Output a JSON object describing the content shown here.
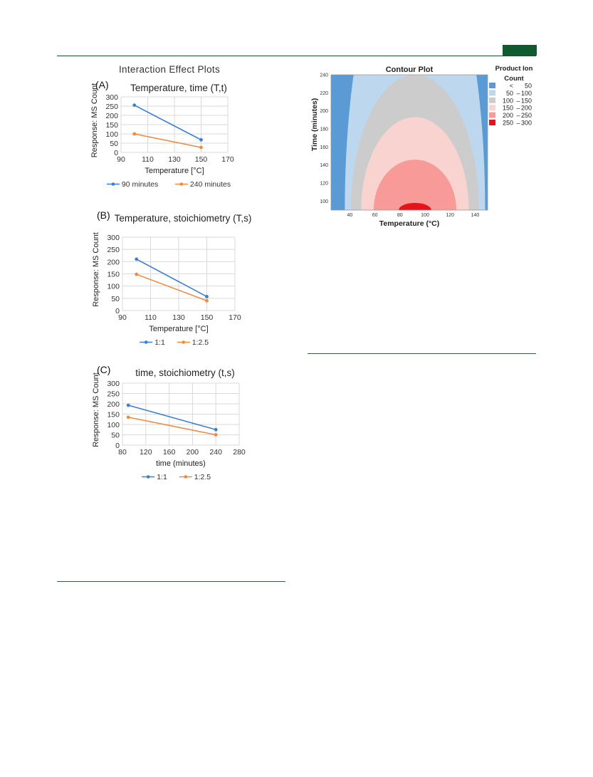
{
  "page": {
    "header_rule_color": "#1e4d2b",
    "header_tab_color": "#0f5a2e"
  },
  "left_figure": {
    "title": "Interaction Effect Plots"
  },
  "chart_data": [
    {
      "id": "A",
      "type": "line",
      "panel_label": "(A)",
      "title": "Temperature, time (T,t)",
      "xlabel": "Temperature [°C]",
      "ylabel": "Response: MS Count",
      "xlim": [
        90,
        170
      ],
      "ylim": [
        0,
        300
      ],
      "xticks": [
        90,
        110,
        130,
        150,
        170
      ],
      "yticks": [
        0,
        50,
        100,
        150,
        200,
        250,
        300
      ],
      "grid": true,
      "legend_position": "bottom",
      "x": [
        100,
        150
      ],
      "series": [
        {
          "name": "90 minutes",
          "values": [
            255,
            68
          ],
          "color": "#3a7fd0"
        },
        {
          "name": "240 minutes",
          "values": [
            100,
            27
          ],
          "color": "#f08a3e"
        }
      ]
    },
    {
      "id": "B",
      "type": "line",
      "panel_label": "(B)",
      "title": "Temperature, stoichiometry (T,s)",
      "xlabel": "Temperature [°C]",
      "ylabel": "Response: MS Count",
      "xlim": [
        90,
        170
      ],
      "ylim": [
        0,
        300
      ],
      "xticks": [
        90,
        110,
        130,
        150,
        170
      ],
      "yticks": [
        0,
        50,
        100,
        150,
        200,
        250,
        300
      ],
      "grid": true,
      "legend_position": "bottom",
      "x": [
        100,
        150
      ],
      "series": [
        {
          "name": "1:1",
          "values": [
            210,
            57
          ],
          "color": "#3a7fd0"
        },
        {
          "name": "1:2.5",
          "values": [
            148,
            40
          ],
          "color": "#f08a3e"
        }
      ]
    },
    {
      "id": "C",
      "type": "line",
      "panel_label": "(C)",
      "title": "time, stoichiometry (t,s)",
      "xlabel": "time (minutes)",
      "ylabel": "Response: MS Count",
      "xlim": [
        80,
        280
      ],
      "ylim": [
        0,
        300
      ],
      "xticks": [
        80,
        120,
        160,
        200,
        240,
        280
      ],
      "yticks": [
        0,
        50,
        100,
        150,
        200,
        250,
        300
      ],
      "grid": true,
      "legend_position": "bottom",
      "x": [
        90,
        240
      ],
      "series": [
        {
          "name": "1:1",
          "values": [
            193,
            75
          ],
          "color": "#3a7fd0"
        },
        {
          "name": "1:2.5",
          "values": [
            135,
            50
          ],
          "color": "#f08a3e"
        }
      ]
    },
    {
      "id": "contour",
      "type": "contour",
      "title": "Contour Plot",
      "xlabel": "Temperature (°C)",
      "ylabel": "Time (minutes)",
      "xlim": [
        25,
        150
      ],
      "ylim": [
        90,
        240
      ],
      "xticks": [
        40,
        60,
        80,
        100,
        120,
        140
      ],
      "yticks": [
        100,
        120,
        140,
        160,
        180,
        200,
        220,
        240
      ],
      "peak": {
        "temperature": 92,
        "time": 90
      },
      "level_extents": [
        {
          "level": 50,
          "x_half_width": 56,
          "y_top": 400
        },
        {
          "level": 100,
          "x_half_width": 51,
          "y_top": 240
        },
        {
          "level": 150,
          "x_half_width": 43,
          "y_top": 193
        },
        {
          "level": 200,
          "x_half_width": 33,
          "y_top": 146
        },
        {
          "level": 250,
          "x_half_width": 13,
          "y_top": 98
        }
      ],
      "legend_title_line1": "Product Ion",
      "legend_title_line2": "Count",
      "legend": [
        {
          "low": "<",
          "dash": "",
          "high": "50",
          "color": "#5b9bd5"
        },
        {
          "low": "50",
          "dash": "–",
          "high": "100",
          "color": "#bdd7ee"
        },
        {
          "low": "100",
          "dash": "–",
          "high": "150",
          "color": "#cccccc"
        },
        {
          "low": "150",
          "dash": "–",
          "high": "200",
          "color": "#f8d3d0"
        },
        {
          "low": "200",
          "dash": "–",
          "high": "250",
          "color": "#f79a98"
        },
        {
          "low": "250",
          "dash": "–",
          "high": "300",
          "color": "#e8131a"
        }
      ]
    }
  ]
}
